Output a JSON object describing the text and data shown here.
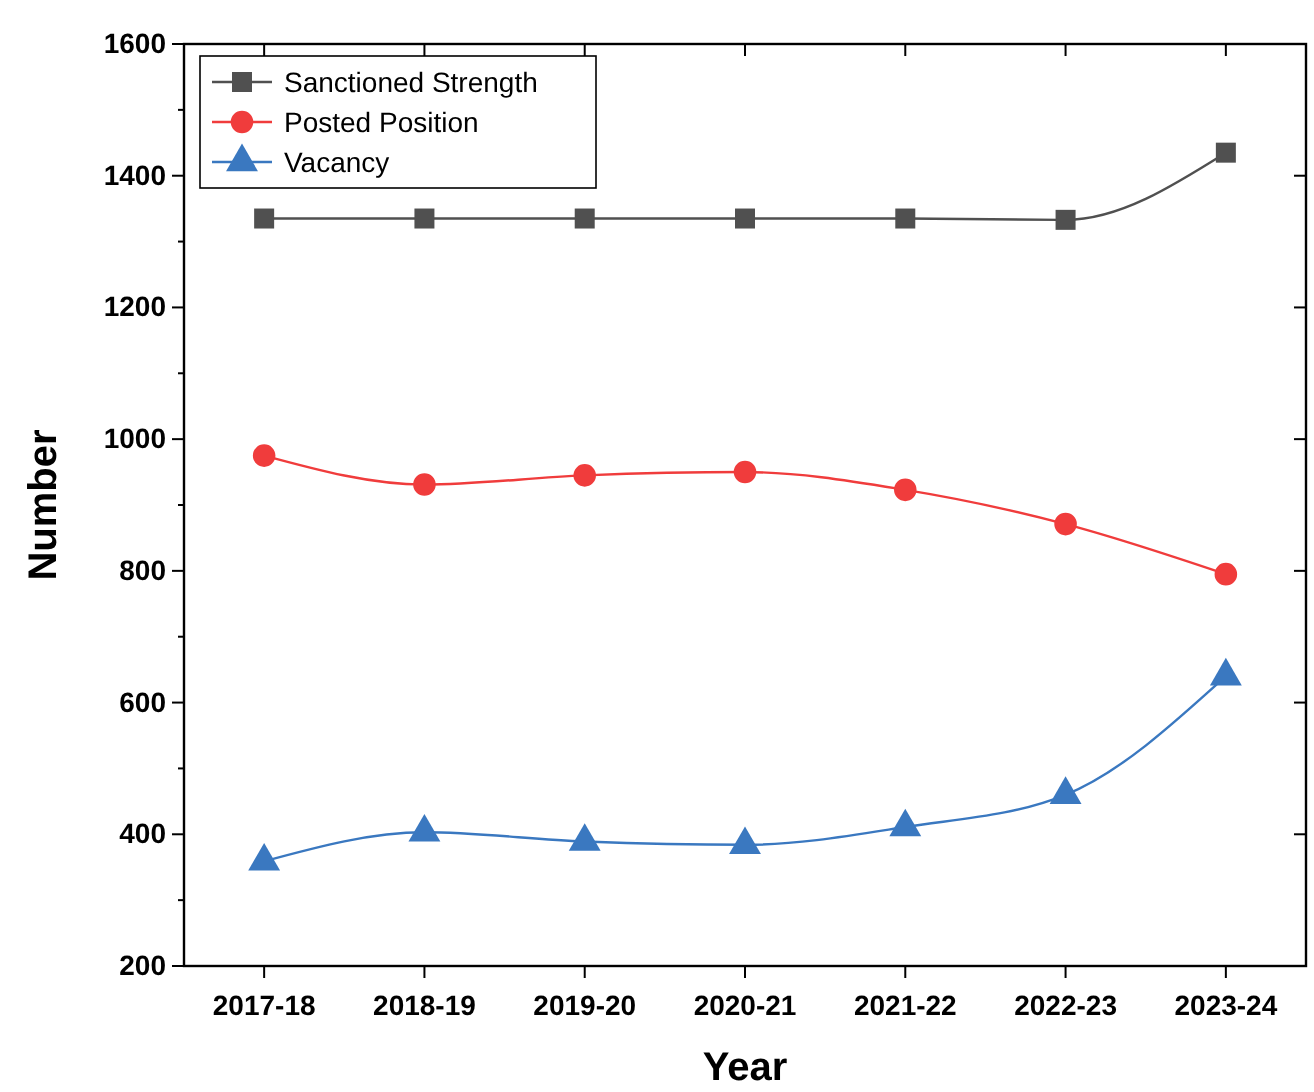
{
  "chart_data": {
    "type": "line",
    "xlabel": "Year",
    "ylabel": "Number",
    "categories": [
      "2017-18",
      "2018-19",
      "2019-20",
      "2020-21",
      "2021-22",
      "2022-23",
      "2023-24"
    ],
    "series": [
      {
        "name": "Sanctioned Strength",
        "color": "#505050",
        "marker": "square",
        "values": [
          1335,
          1335,
          1335,
          1335,
          1335,
          1333,
          1435
        ]
      },
      {
        "name": "Posted Position",
        "color": "#f03c3c",
        "marker": "circle",
        "values": [
          975,
          931,
          945,
          950,
          923,
          871,
          795
        ]
      },
      {
        "name": "Vacancy",
        "color": "#3a78c0",
        "marker": "triangle",
        "values": [
          359,
          403,
          389,
          384,
          411,
          460,
          640
        ]
      }
    ],
    "ylim": [
      200,
      1600
    ],
    "yticks": [
      200,
      400,
      600,
      800,
      1000,
      1200,
      1400,
      1600
    ],
    "grid": false,
    "legend": "top left",
    "line_style": "solid"
  }
}
